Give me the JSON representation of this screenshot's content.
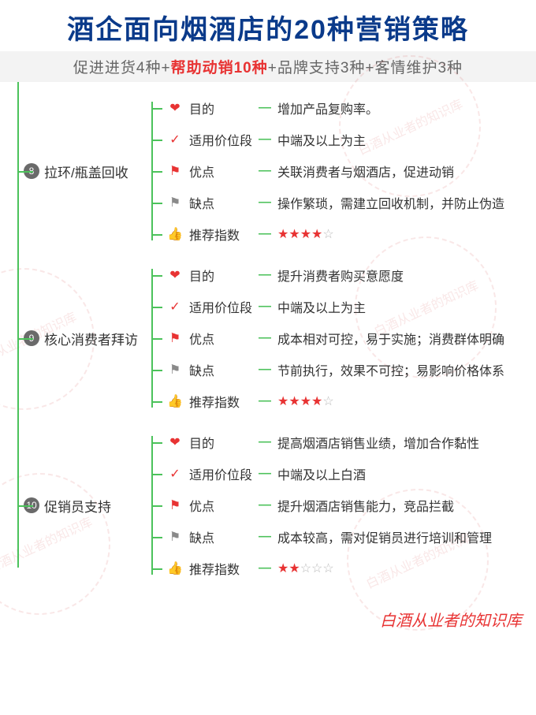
{
  "title": "酒企面向烟酒店的20种营销策略",
  "subtitle": {
    "p1": "促进进货4种+",
    "hl": "帮助动销10种",
    "p2": "+品牌支持3种+客情维护3种"
  },
  "colors": {
    "title": "#0a3a8a",
    "highlight": "#e83333",
    "line": "#4cc25b",
    "badge_bg": "#6a6a6a",
    "text": "#333333",
    "subtitle_bg": "#f3f3f3",
    "subtitle_text": "#666666",
    "star_empty": "#bbbbbb",
    "watermark": "#d04040"
  },
  "icons": {
    "heart": {
      "glyph": "❤",
      "color": "#e83333"
    },
    "check": {
      "glyph": "✓",
      "color": "#e83333"
    },
    "flag_red": {
      "glyph": "⚑",
      "color": "#e83333"
    },
    "flag_grey": {
      "glyph": "⚑",
      "color": "#8a8a8a"
    },
    "thumb": {
      "glyph": "👍",
      "color": "#e83333"
    }
  },
  "attr_labels": {
    "purpose": "目的",
    "price": "适用价位段",
    "pro": "优点",
    "con": "缺点",
    "rating": "推荐指数"
  },
  "strategies": [
    {
      "num": "8",
      "name": "拉环/瓶盖回收",
      "purpose": "增加产品复购率。",
      "price": "中端及以上为主",
      "pro": "关联消费者与烟酒店，促进动销",
      "con": "操作繁琐，需建立回收机制，并防止伪造",
      "rating": 4
    },
    {
      "num": "9",
      "name": "核心消费者拜访",
      "purpose": "提升消费者购买意愿度",
      "price": "中端及以上为主",
      "pro": "成本相对可控，易于实施；消费群体明确",
      "con": "节前执行，效果不可控；易影响价格体系",
      "rating": 4
    },
    {
      "num": "10",
      "name": "促销员支持",
      "purpose": "提高烟酒店销售业绩，增加合作黏性",
      "price": "中端及以上白酒",
      "pro": "提升烟酒店销售能力，竞品拦截",
      "con": "成本较高，需对促销员进行培训和管理",
      "rating": 2
    }
  ],
  "watermark_text": "白酒从业者的知识库",
  "footer": "白酒从业者的知识库",
  "star_max": 5
}
